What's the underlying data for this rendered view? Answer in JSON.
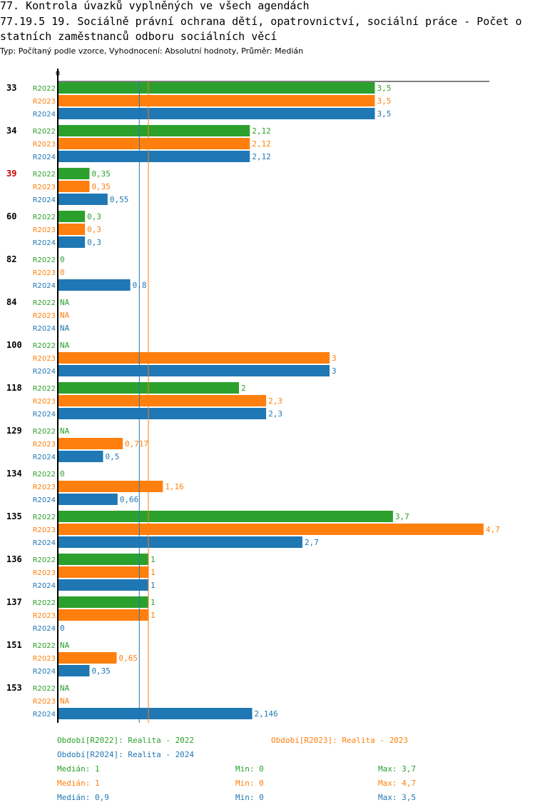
{
  "header": {
    "title_line1": "77. Kontrola úvazků vyplněných ve všech agendách",
    "title_line2": "77.19.5 19. Sociálně právní ochrana dětí, opatrovnictví, sociální práce - Počet o",
    "title_line3": "statních zaměstnanců odboru sociálních věcí",
    "subtitle": "Typ: Počítaný podle vzorce, Vyhodnocení: Absolutní hodnoty, Průměr: Medián"
  },
  "colors": {
    "R2022": "#2ca02c",
    "R2023": "#ff7f0e",
    "R2024": "#1f77b4",
    "highlight": "#cc0000"
  },
  "chart_data": {
    "type": "bar",
    "orientation": "horizontal",
    "x_tick_label": "0",
    "xlim": [
      0,
      4.7
    ],
    "series_names": [
      "R2022",
      "R2023",
      "R2024"
    ],
    "categories": [
      {
        "label": "33",
        "highlight": false,
        "values": [
          3.5,
          3.5,
          3.5
        ],
        "labels": [
          "3,5",
          "3,5",
          "3,5"
        ]
      },
      {
        "label": "34",
        "highlight": false,
        "values": [
          2.12,
          2.12,
          2.12
        ],
        "labels": [
          "2,12",
          "2,12",
          "2,12"
        ]
      },
      {
        "label": "39",
        "highlight": true,
        "values": [
          0.35,
          0.35,
          0.55
        ],
        "labels": [
          "0,35",
          "0,35",
          "0,55"
        ]
      },
      {
        "label": "60",
        "highlight": false,
        "values": [
          0.3,
          0.3,
          0.3
        ],
        "labels": [
          "0,3",
          "0,3",
          "0,3"
        ]
      },
      {
        "label": "82",
        "highlight": false,
        "values": [
          0,
          0,
          0.8
        ],
        "labels": [
          "0",
          "0",
          "0,8"
        ]
      },
      {
        "label": "84",
        "highlight": false,
        "values": [
          null,
          null,
          null
        ],
        "labels": [
          "NA",
          "NA",
          "NA"
        ]
      },
      {
        "label": "100",
        "highlight": false,
        "values": [
          null,
          3,
          3
        ],
        "labels": [
          "NA",
          "3",
          "3"
        ]
      },
      {
        "label": "118",
        "highlight": false,
        "values": [
          2,
          2.3,
          2.3
        ],
        "labels": [
          "2",
          "2,3",
          "2,3"
        ]
      },
      {
        "label": "129",
        "highlight": false,
        "values": [
          null,
          0.717,
          0.5
        ],
        "labels": [
          "NA",
          "0,717",
          "0,5"
        ]
      },
      {
        "label": "134",
        "highlight": false,
        "values": [
          0,
          1.16,
          0.66
        ],
        "labels": [
          "0",
          "1,16",
          "0,66"
        ]
      },
      {
        "label": "135",
        "highlight": false,
        "values": [
          3.7,
          4.7,
          2.7
        ],
        "labels": [
          "3,7",
          "4,7",
          "2,7"
        ]
      },
      {
        "label": "136",
        "highlight": false,
        "values": [
          1,
          1,
          1
        ],
        "labels": [
          "1",
          "1",
          "1"
        ]
      },
      {
        "label": "137",
        "highlight": false,
        "values": [
          1,
          1,
          0
        ],
        "labels": [
          "1",
          "1",
          "0"
        ]
      },
      {
        "label": "151",
        "highlight": false,
        "values": [
          null,
          0.65,
          0.35
        ],
        "labels": [
          "NA",
          "0,65",
          "0,35"
        ]
      },
      {
        "label": "153",
        "highlight": false,
        "values": [
          null,
          null,
          2.146
        ],
        "labels": [
          "NA",
          "NA",
          "2,146"
        ]
      }
    ],
    "median_lines": [
      {
        "series": "R2023",
        "value": 1
      },
      {
        "series": "R2024",
        "value": 0.9
      }
    ]
  },
  "legend": {
    "entries": [
      {
        "series": "R2022",
        "text": "Období[R2022]: Realita - 2022"
      },
      {
        "series": "R2023",
        "text": "Období[R2023]: Realita - 2023"
      },
      {
        "series": "R2024",
        "text": "Období[R2024]: Realita - 2024"
      }
    ],
    "stats": [
      {
        "series": "R2022",
        "median": "Medián: 1",
        "min": "Min: 0",
        "max": "Max: 3,7"
      },
      {
        "series": "R2023",
        "median": "Medián: 1",
        "min": "Min: 0",
        "max": "Max: 4,7"
      },
      {
        "series": "R2024",
        "median": "Medián: 0,9",
        "min": "Min: 0",
        "max": "Max: 3,5"
      }
    ]
  }
}
